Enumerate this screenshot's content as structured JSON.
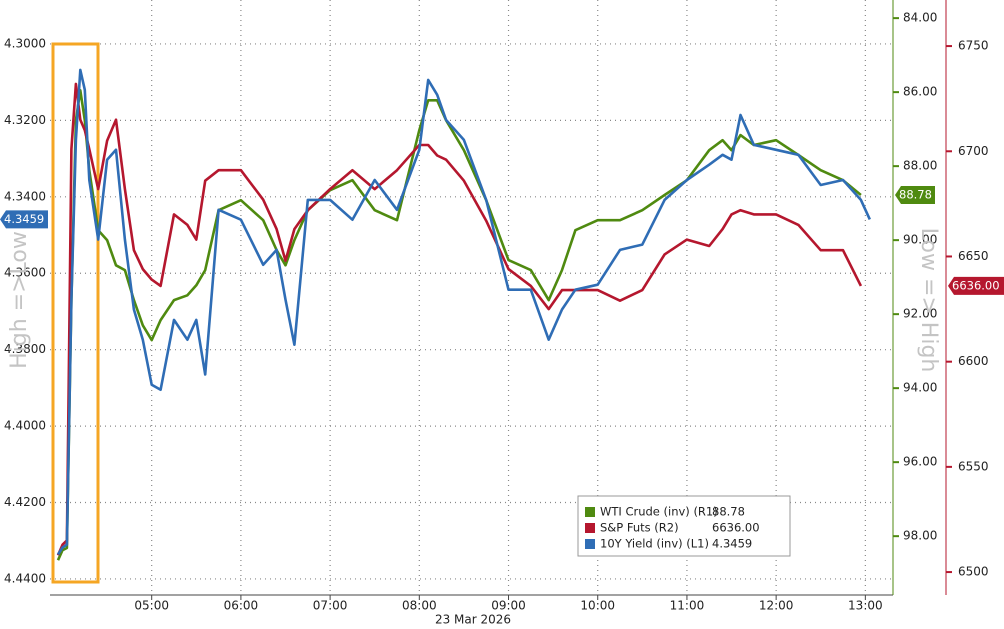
{
  "chart_data": {
    "type": "line",
    "x_label": "23 Mar 2026",
    "y_label": "High =>Low",
    "y2_label": "Low => High",
    "x": [
      3.95,
      4.0,
      4.05,
      4.1,
      4.15,
      4.2,
      4.25,
      4.3,
      4.4,
      4.5,
      4.6,
      4.7,
      4.8,
      4.9,
      5.0,
      5.1,
      5.25,
      5.4,
      5.5,
      5.6,
      5.75,
      6.0,
      6.25,
      6.4,
      6.5,
      6.6,
      6.75,
      7.0,
      7.25,
      7.5,
      7.75,
      8.0,
      8.1,
      8.2,
      8.3,
      8.5,
      8.75,
      9.0,
      9.25,
      9.45,
      9.6,
      9.75,
      10.0,
      10.25,
      10.5,
      10.75,
      11.0,
      11.25,
      11.4,
      11.5,
      11.6,
      11.75,
      12.0,
      12.25,
      12.5,
      12.75,
      12.95,
      13.05
    ],
    "xlim": [
      3.86,
      13.31
    ],
    "xticks": [
      {
        "value": 5,
        "label": "05:00"
      },
      {
        "value": 6,
        "label": "06:00"
      },
      {
        "value": 7,
        "label": "07:00"
      },
      {
        "value": 8,
        "label": "08:00"
      },
      {
        "value": 9,
        "label": "09:00"
      },
      {
        "value": 10,
        "label": "10:00"
      },
      {
        "value": 11,
        "label": "11:00"
      },
      {
        "value": 12,
        "label": "12:00"
      },
      {
        "value": 13,
        "label": "13:00"
      }
    ],
    "ylim": [
      4.2885,
      4.4442
    ],
    "y_inverted": true,
    "yticks": [
      {
        "value": 4.3,
        "label": "4.3000"
      },
      {
        "value": 4.32,
        "label": "4.3200"
      },
      {
        "value": 4.34,
        "label": "4.3400"
      },
      {
        "value": 4.36,
        "label": "4.3600"
      },
      {
        "value": 4.38,
        "label": "4.3800"
      },
      {
        "value": 4.4,
        "label": "4.4000"
      },
      {
        "value": 4.42,
        "label": "4.4200"
      },
      {
        "value": 4.44,
        "label": "4.4400"
      }
    ],
    "y2lim": [
      83.51,
      99.59
    ],
    "y2_inverted": true,
    "y2ticks": [
      {
        "value": 84,
        "label": "84.00"
      },
      {
        "value": 86,
        "label": "86.00"
      },
      {
        "value": 88,
        "label": "88.00"
      },
      {
        "value": 90,
        "label": "90.00"
      },
      {
        "value": 92,
        "label": "92.00"
      },
      {
        "value": 94,
        "label": "94.00"
      },
      {
        "value": 96,
        "label": "96.00"
      },
      {
        "value": 98,
        "label": "98.00"
      }
    ],
    "y3lim": [
      6489.1,
      6771.9
    ],
    "y3ticks": [
      6750,
      6700,
      6650,
      6600,
      6550,
      6500
    ],
    "grid": true,
    "series": [
      {
        "name": "WTI Crude (inv) (R1)",
        "color": "#4f8a10",
        "axis": "y2",
        "last_label": "88.78",
        "values": [
          98.65,
          98.38,
          98.32,
          91.62,
          86.76,
          85.95,
          86.76,
          88.11,
          89.73,
          90.0,
          90.68,
          90.81,
          91.62,
          92.3,
          92.7,
          92.16,
          91.62,
          91.49,
          91.22,
          90.81,
          89.19,
          88.92,
          89.46,
          90.27,
          90.68,
          90.0,
          89.19,
          88.65,
          88.38,
          89.19,
          89.46,
          87.03,
          86.22,
          86.22,
          86.76,
          87.57,
          88.92,
          90.54,
          90.81,
          91.62,
          90.81,
          89.73,
          89.46,
          89.46,
          89.19,
          88.78,
          88.38,
          87.57,
          87.3,
          87.57,
          87.16,
          87.43,
          87.3,
          87.7,
          88.11,
          88.38,
          88.78,
          null
        ]
      },
      {
        "name": "S&P Futs (R2)",
        "color": "#b5172e",
        "axis": "y3",
        "last_label": "6636.00",
        "values": [
          6508,
          6513,
          6515,
          6701,
          6732,
          6715,
          6710,
          6701,
          6682,
          6705,
          6715,
          6682,
          6653,
          6644,
          6639,
          6636,
          6670,
          6665,
          6658,
          6686,
          6691,
          6691,
          6677,
          6663,
          6648,
          6663,
          6672,
          6682,
          6691,
          6682,
          6691,
          6703,
          6703,
          6698,
          6696,
          6686,
          6667,
          6644,
          6636,
          6625,
          6634,
          6634,
          6634,
          6629,
          6634,
          6651,
          6658,
          6655,
          6663,
          6670,
          6672,
          6670,
          6670,
          6665,
          6653,
          6653,
          6636,
          null
        ]
      },
      {
        "name": "10Y Yield (inv) (L1)",
        "color": "#2f6db5",
        "axis": "y",
        "last_label": "4.3459",
        "values": [
          4.4336,
          4.4318,
          4.431,
          4.3669,
          4.3251,
          4.3068,
          4.312,
          4.3356,
          4.3512,
          4.3303,
          4.3277,
          4.3512,
          4.3695,
          4.3774,
          4.3892,
          4.3905,
          4.3722,
          4.3774,
          4.3722,
          4.3865,
          4.3434,
          4.346,
          4.3578,
          4.3539,
          4.3669,
          4.3787,
          4.3408,
          4.3408,
          4.346,
          4.3356,
          4.3434,
          4.3277,
          4.3094,
          4.3133,
          4.3199,
          4.3251,
          4.3408,
          4.3643,
          4.3643,
          4.3774,
          4.3695,
          4.3643,
          4.363,
          4.3539,
          4.3525,
          4.3408,
          4.3356,
          4.3316,
          4.329,
          4.3303,
          4.3186,
          4.3264,
          4.3277,
          4.329,
          4.3369,
          4.3356,
          4.3408,
          4.3459
        ]
      }
    ]
  }
}
